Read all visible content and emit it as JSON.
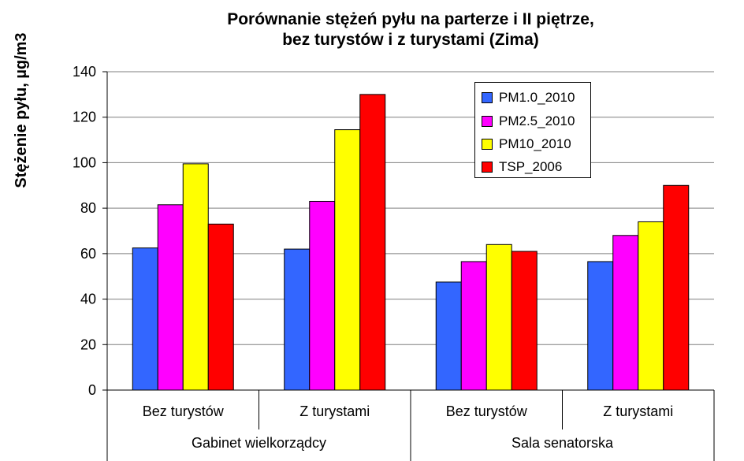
{
  "chart_data": {
    "type": "bar",
    "title_line1": "Porównanie stężeń pyłu na parterze i II piętrze,",
    "title_line2": "bez turystów i z turystami (Zima)",
    "ylabel": "Stężenie pyłu, µg/m3",
    "ylim": [
      0,
      140
    ],
    "yticks": [
      0,
      20,
      40,
      60,
      80,
      100,
      120,
      140
    ],
    "grid": true,
    "legend_position": "top-right",
    "categories": [
      "Bez turystów",
      "Z turystami",
      "Bez turystów",
      "Z turystami"
    ],
    "groups": [
      "Gabinet wielkorządcy",
      "Sala senatorska"
    ],
    "series": [
      {
        "name": "PM1.0_2010",
        "color": "#3366ff",
        "values": [
          62.5,
          62,
          47.5,
          56.5
        ]
      },
      {
        "name": "PM2.5_2010",
        "color": "#ff00ff",
        "values": [
          81.5,
          83,
          56.5,
          68
        ]
      },
      {
        "name": "PM10_2010",
        "color": "#ffff00",
        "values": [
          99.5,
          114.5,
          64,
          74
        ]
      },
      {
        "name": "TSP_2006",
        "color": "#ff0000",
        "values": [
          73,
          130,
          61,
          90
        ]
      }
    ]
  }
}
